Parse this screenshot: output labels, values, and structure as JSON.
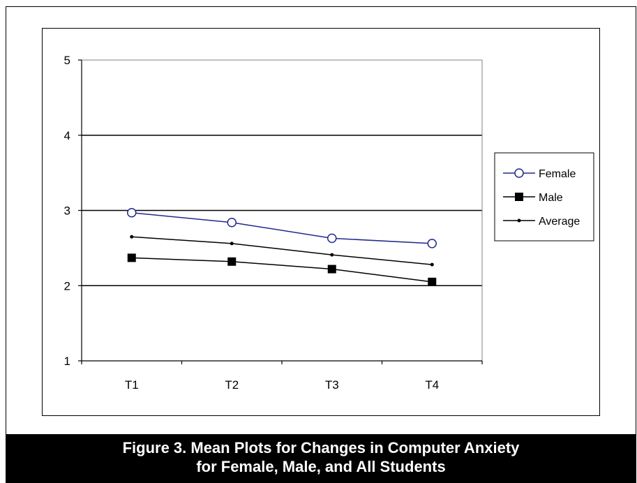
{
  "chart_data": {
    "type": "line",
    "categories": [
      "T1",
      "T2",
      "T3",
      "T4"
    ],
    "ylim": [
      1,
      5
    ],
    "yticks": [
      1,
      2,
      3,
      4,
      5
    ],
    "grid": true,
    "legend_position": "right",
    "series": [
      {
        "name": "Female",
        "values": [
          2.97,
          2.84,
          2.63,
          2.56
        ],
        "color": "#1f2a8c",
        "marker": "open-circle"
      },
      {
        "name": "Male",
        "values": [
          2.37,
          2.32,
          2.22,
          2.05
        ],
        "color": "#000000",
        "marker": "filled-square"
      },
      {
        "name": "Average",
        "values": [
          2.65,
          2.56,
          2.41,
          2.28
        ],
        "color": "#000000",
        "marker": "small-dot"
      }
    ]
  },
  "caption": {
    "line1": "Figure 3. Mean Plots for Changes in Computer Anxiety",
    "line2": "for Female, Male, and All Students"
  }
}
